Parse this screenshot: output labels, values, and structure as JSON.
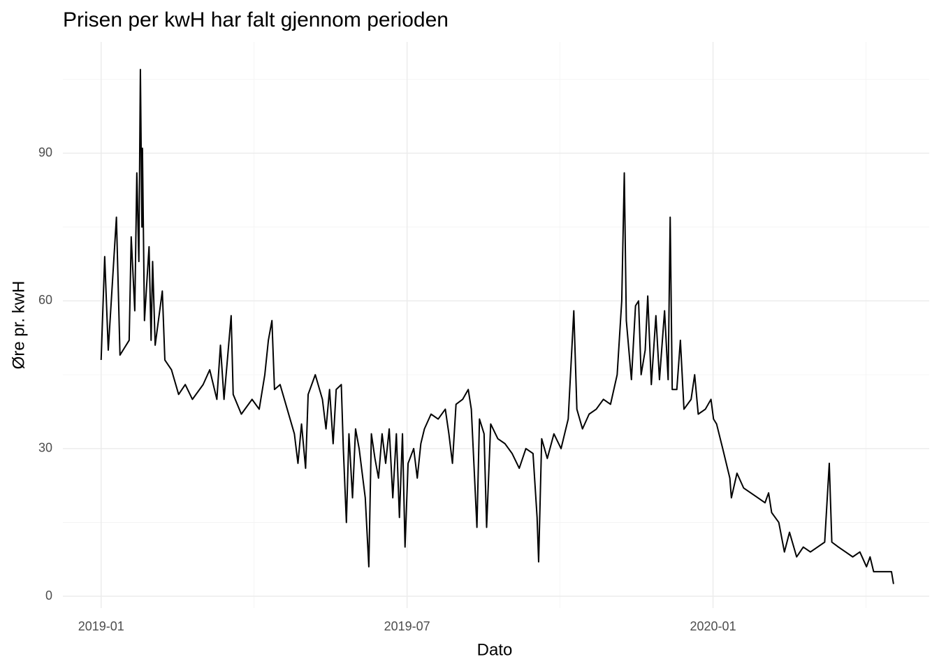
{
  "chart_data": {
    "type": "line",
    "title": "Prisen per kwH har falt gjennom perioden",
    "x_label": "Dato",
    "y_label": "Øre pr. kwH",
    "color": "#000000",
    "grid": true,
    "xlim": [
      -0.75,
      16.24
    ],
    "xticks": [
      {
        "value": 0,
        "label": "2019-01"
      },
      {
        "value": 6,
        "label": "2019-07"
      },
      {
        "value": 12,
        "label": "2020-01"
      }
    ],
    "ylim": [
      -2.4,
      112.6
    ],
    "yticks": [
      0,
      30,
      60,
      90
    ],
    "x": [
      0,
      0.07,
      0.14,
      0.3,
      0.37,
      0.55,
      0.59,
      0.66,
      0.7,
      0.74,
      0.77,
      0.8,
      0.81,
      0.85,
      0.94,
      0.98,
      1.01,
      1.06,
      1.2,
      1.25,
      1.38,
      1.52,
      1.65,
      1.79,
      2.0,
      2.13,
      2.27,
      2.34,
      2.41,
      2.55,
      2.59,
      2.75,
      2.96,
      3.1,
      3.21,
      3.28,
      3.35,
      3.4,
      3.51,
      3.65,
      3.79,
      3.86,
      3.93,
      4.01,
      4.06,
      4.2,
      4.34,
      4.41,
      4.48,
      4.55,
      4.61,
      4.71,
      4.75,
      4.81,
      4.86,
      4.93,
      4.99,
      5.06,
      5.12,
      5.18,
      5.25,
      5.3,
      5.37,
      5.44,
      5.51,
      5.58,
      5.65,
      5.72,
      5.79,
      5.85,
      5.91,
      5.96,
      6.02,
      6.13,
      6.2,
      6.27,
      6.34,
      6.47,
      6.61,
      6.75,
      6.82,
      6.89,
      6.96,
      7.09,
      7.2,
      7.26,
      7.37,
      7.42,
      7.51,
      7.56,
      7.64,
      7.78,
      7.92,
      8.06,
      8.2,
      8.33,
      8.47,
      8.55,
      8.58,
      8.64,
      8.75,
      8.88,
      9.02,
      9.16,
      9.27,
      9.33,
      9.44,
      9.57,
      9.71,
      9.85,
      9.99,
      10.12,
      10.21,
      10.26,
      10.3,
      10.4,
      10.48,
      10.54,
      10.59,
      10.67,
      10.72,
      10.79,
      10.88,
      10.95,
      11.05,
      11.12,
      11.16,
      11.2,
      11.29,
      11.36,
      11.43,
      11.57,
      11.64,
      11.71,
      11.85,
      11.96,
      12.01,
      12.07,
      12.19,
      12.33,
      12.36,
      12.47,
      12.6,
      12.74,
      12.88,
      13.02,
      13.09,
      13.15,
      13.29,
      13.4,
      13.5,
      13.64,
      13.77,
      13.91,
      14.05,
      14.19,
      14.28,
      14.33,
      14.46,
      14.6,
      14.74,
      14.88,
      15.01,
      15.08,
      15.15,
      15.29,
      15.43,
      15.5,
      15.54
    ],
    "values": [
      48,
      69,
      50,
      77,
      49,
      52,
      73,
      58,
      86,
      68,
      107,
      75,
      91,
      56,
      71,
      52,
      68,
      51,
      62,
      48,
      46,
      41,
      43,
      40,
      43,
      46,
      40,
      51,
      40,
      57,
      41,
      37,
      40,
      38,
      45,
      52,
      56,
      42,
      43,
      38,
      33,
      27,
      35,
      26,
      41,
      45,
      40,
      34,
      42,
      31,
      42,
      43,
      30,
      15,
      33,
      20,
      34,
      30,
      25,
      20,
      6,
      33,
      28,
      24,
      33,
      27,
      34,
      20,
      33,
      16,
      33,
      10,
      27,
      30,
      24,
      31,
      34,
      37,
      36,
      38,
      33,
      27,
      39,
      40,
      42,
      38,
      14,
      36,
      33,
      14,
      35,
      32,
      31,
      29,
      26,
      30,
      29,
      16,
      7,
      32,
      28,
      33,
      30,
      36,
      58,
      38,
      34,
      37,
      38,
      40,
      39,
      45,
      60,
      86,
      56,
      44,
      59,
      60,
      45,
      50,
      61,
      43,
      57,
      44,
      58,
      44,
      77,
      42,
      42,
      52,
      38,
      40,
      45,
      37,
      38,
      40,
      36,
      35,
      30,
      24,
      20,
      25,
      22,
      21,
      20,
      19,
      21,
      17,
      15,
      9,
      13,
      8,
      10,
      9,
      10,
      11,
      27,
      11,
      10,
      9,
      8,
      9,
      6,
      8,
      5,
      5,
      5,
      5,
      2.5
    ]
  }
}
